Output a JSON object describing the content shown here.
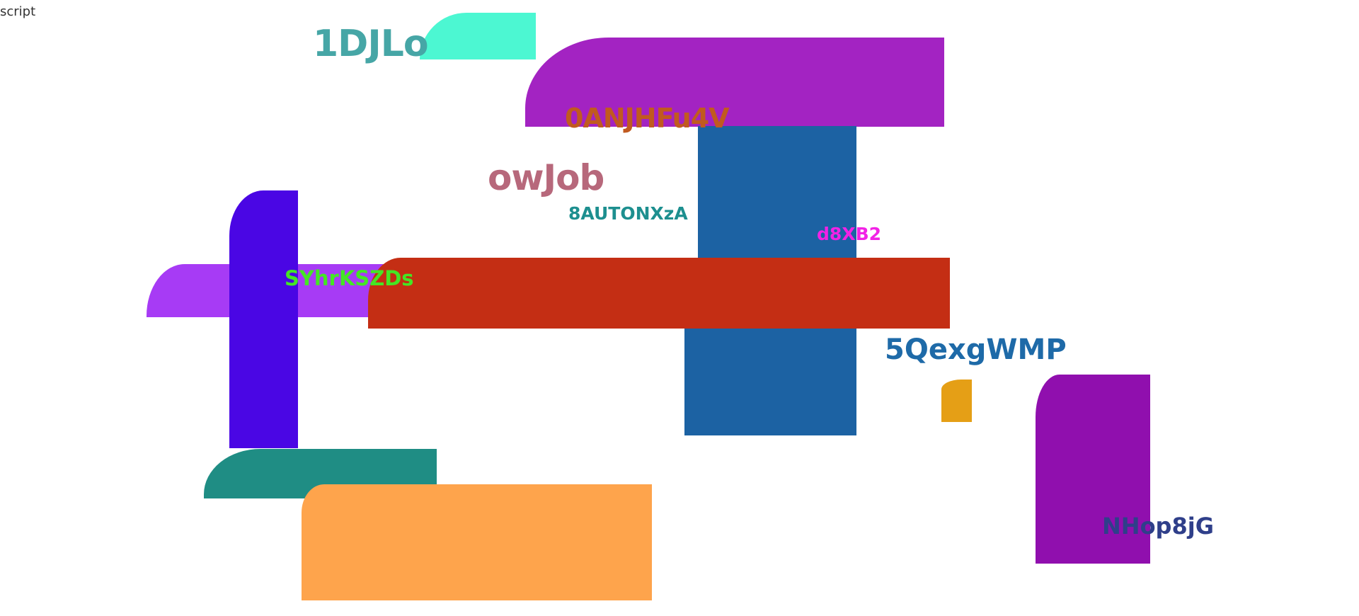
{
  "corner": {
    "text": "script"
  },
  "shapes": [
    {
      "name": "aqua-rounded-block",
      "color": "#4cf7d2"
    },
    {
      "name": "purple-wide-block",
      "color": "#a323c2"
    },
    {
      "name": "blue-tall-block",
      "color": "#1c62a3"
    },
    {
      "name": "blue-lower-block",
      "color": "#1c62a3"
    },
    {
      "name": "violet-block",
      "color": "#a73bf5"
    },
    {
      "name": "indigo-tall-block",
      "color": "#4a06e4"
    },
    {
      "name": "red-wide-block",
      "color": "#c42e14"
    },
    {
      "name": "orange-small-block",
      "color": "#e59f16"
    },
    {
      "name": "magenta-tall-block",
      "color": "#900fae"
    },
    {
      "name": "teal-block",
      "color": "#1f8d84"
    },
    {
      "name": "peach-block",
      "color": "#fea44c"
    }
  ],
  "labels": [
    {
      "text": "1DJLo",
      "color": "#46a6a6"
    },
    {
      "text": "0ANJHFu4V",
      "color": "#c15a1f"
    },
    {
      "text": "owJob",
      "color": "#b7687b"
    },
    {
      "text": "8AUTONXzA",
      "color": "#1d8f8f"
    },
    {
      "text": "d8XB2",
      "color": "#f222e6"
    },
    {
      "text": "SYhrKSZDs",
      "color": "#44e624"
    },
    {
      "text": "5QexgWMP",
      "color": "#1e6aa8"
    },
    {
      "text": "NHop8jG",
      "color": "#2f3f8a"
    }
  ]
}
